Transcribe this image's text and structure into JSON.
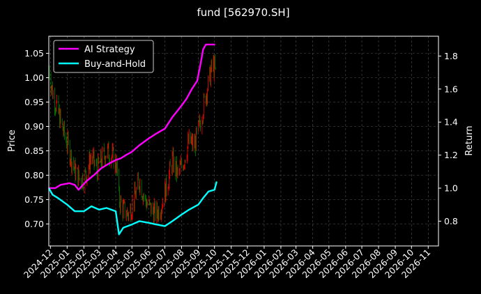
{
  "chart_data": {
    "type": "line",
    "title": "fund [562970.SH]",
    "ylabel": "Price",
    "y2label": "Return",
    "ylim": [
      0.655,
      1.085
    ],
    "y2lim": [
      0.65,
      1.92
    ],
    "yticks": [
      "0.70",
      "0.75",
      "0.80",
      "0.85",
      "0.90",
      "0.95",
      "1.00",
      "1.05"
    ],
    "yticks_values": [
      0.7,
      0.75,
      0.8,
      0.85,
      0.9,
      0.95,
      1.0,
      1.05
    ],
    "y2ticks": [
      "0.8",
      "1.0",
      "1.2",
      "1.4",
      "1.6",
      "1.8"
    ],
    "y2ticks_values": [
      0.8,
      1.0,
      1.2,
      1.4,
      1.6,
      1.8
    ],
    "xlim": [
      "2024-11-28",
      "2026-11-20"
    ],
    "xticks": [
      "2024-12",
      "2025-01",
      "2025-02",
      "2025-03",
      "2025-04",
      "2025-05",
      "2025-06",
      "2025-07",
      "2025-08",
      "2025-09",
      "2025-10",
      "2025-11",
      "2025-12",
      "2026-01",
      "2026-02",
      "2026-03",
      "2026-04",
      "2026-05",
      "2026-06",
      "2026-07",
      "2026-08",
      "2026-09",
      "2026-10",
      "2026-11"
    ],
    "grid": true,
    "legend_position": "top-left",
    "colors": {
      "ai": "#ff00ff",
      "bh": "#00ffff",
      "up": "#ff0000",
      "down": "#008000",
      "grid": "#555555"
    },
    "series": [
      {
        "name": "AI Strategy",
        "axis": "right",
        "x": [
          "2024-11-28",
          "2024-12-10",
          "2024-12-20",
          "2025-01-05",
          "2025-01-15",
          "2025-01-22",
          "2025-02-05",
          "2025-02-20",
          "2025-03-05",
          "2025-03-20",
          "2025-04-01",
          "2025-04-10",
          "2025-04-20",
          "2025-05-01",
          "2025-05-15",
          "2025-06-01",
          "2025-06-15",
          "2025-07-01",
          "2025-07-15",
          "2025-08-01",
          "2025-08-10",
          "2025-08-20",
          "2025-08-30",
          "2025-09-05",
          "2025-09-10",
          "2025-09-15",
          "2025-09-20",
          "2025-09-25",
          "2025-10-02"
        ],
        "values": [
          1.0,
          1.0,
          1.02,
          1.03,
          1.02,
          0.99,
          1.04,
          1.08,
          1.12,
          1.15,
          1.17,
          1.18,
          1.2,
          1.22,
          1.26,
          1.3,
          1.33,
          1.36,
          1.43,
          1.5,
          1.54,
          1.6,
          1.65,
          1.75,
          1.84,
          1.87,
          1.87,
          1.87,
          1.87
        ]
      },
      {
        "name": "Buy-and-Hold",
        "axis": "right",
        "x": [
          "2024-11-28",
          "2024-12-05",
          "2024-12-15",
          "2025-01-01",
          "2025-01-15",
          "2025-02-01",
          "2025-02-15",
          "2025-03-01",
          "2025-03-15",
          "2025-04-01",
          "2025-04-07",
          "2025-04-15",
          "2025-05-01",
          "2025-05-15",
          "2025-06-01",
          "2025-06-15",
          "2025-07-01",
          "2025-07-15",
          "2025-08-01",
          "2025-08-15",
          "2025-09-01",
          "2025-09-10",
          "2025-09-20",
          "2025-10-01",
          "2025-10-05"
        ],
        "values": [
          1.0,
          0.96,
          0.94,
          0.9,
          0.86,
          0.86,
          0.89,
          0.87,
          0.88,
          0.86,
          0.72,
          0.76,
          0.78,
          0.8,
          0.79,
          0.78,
          0.77,
          0.8,
          0.84,
          0.87,
          0.9,
          0.94,
          0.98,
          0.99,
          1.04
        ]
      }
    ],
    "price": {
      "axis": "left",
      "x": [
        "2024-11-28",
        "2024-12-05",
        "2024-12-15",
        "2024-12-25",
        "2025-01-05",
        "2025-01-15",
        "2025-01-25",
        "2025-02-05",
        "2025-02-15",
        "2025-02-25",
        "2025-03-05",
        "2025-03-15",
        "2025-03-25",
        "2025-04-03",
        "2025-04-07",
        "2025-04-15",
        "2025-04-25",
        "2025-05-05",
        "2025-05-15",
        "2025-05-25",
        "2025-06-05",
        "2025-06-15",
        "2025-06-25",
        "2025-07-05",
        "2025-07-15",
        "2025-07-25",
        "2025-08-05",
        "2025-08-15",
        "2025-08-25",
        "2025-09-05",
        "2025-09-12",
        "2025-09-20",
        "2025-09-28",
        "2025-10-05"
      ],
      "values": [
        1.02,
        0.97,
        0.93,
        0.89,
        0.85,
        0.81,
        0.79,
        0.8,
        0.84,
        0.81,
        0.83,
        0.85,
        0.84,
        0.82,
        0.75,
        0.73,
        0.72,
        0.75,
        0.79,
        0.75,
        0.73,
        0.72,
        0.74,
        0.78,
        0.83,
        0.8,
        0.83,
        0.87,
        0.86,
        0.91,
        0.95,
        0.99,
        1.03,
        1.0
      ]
    }
  }
}
